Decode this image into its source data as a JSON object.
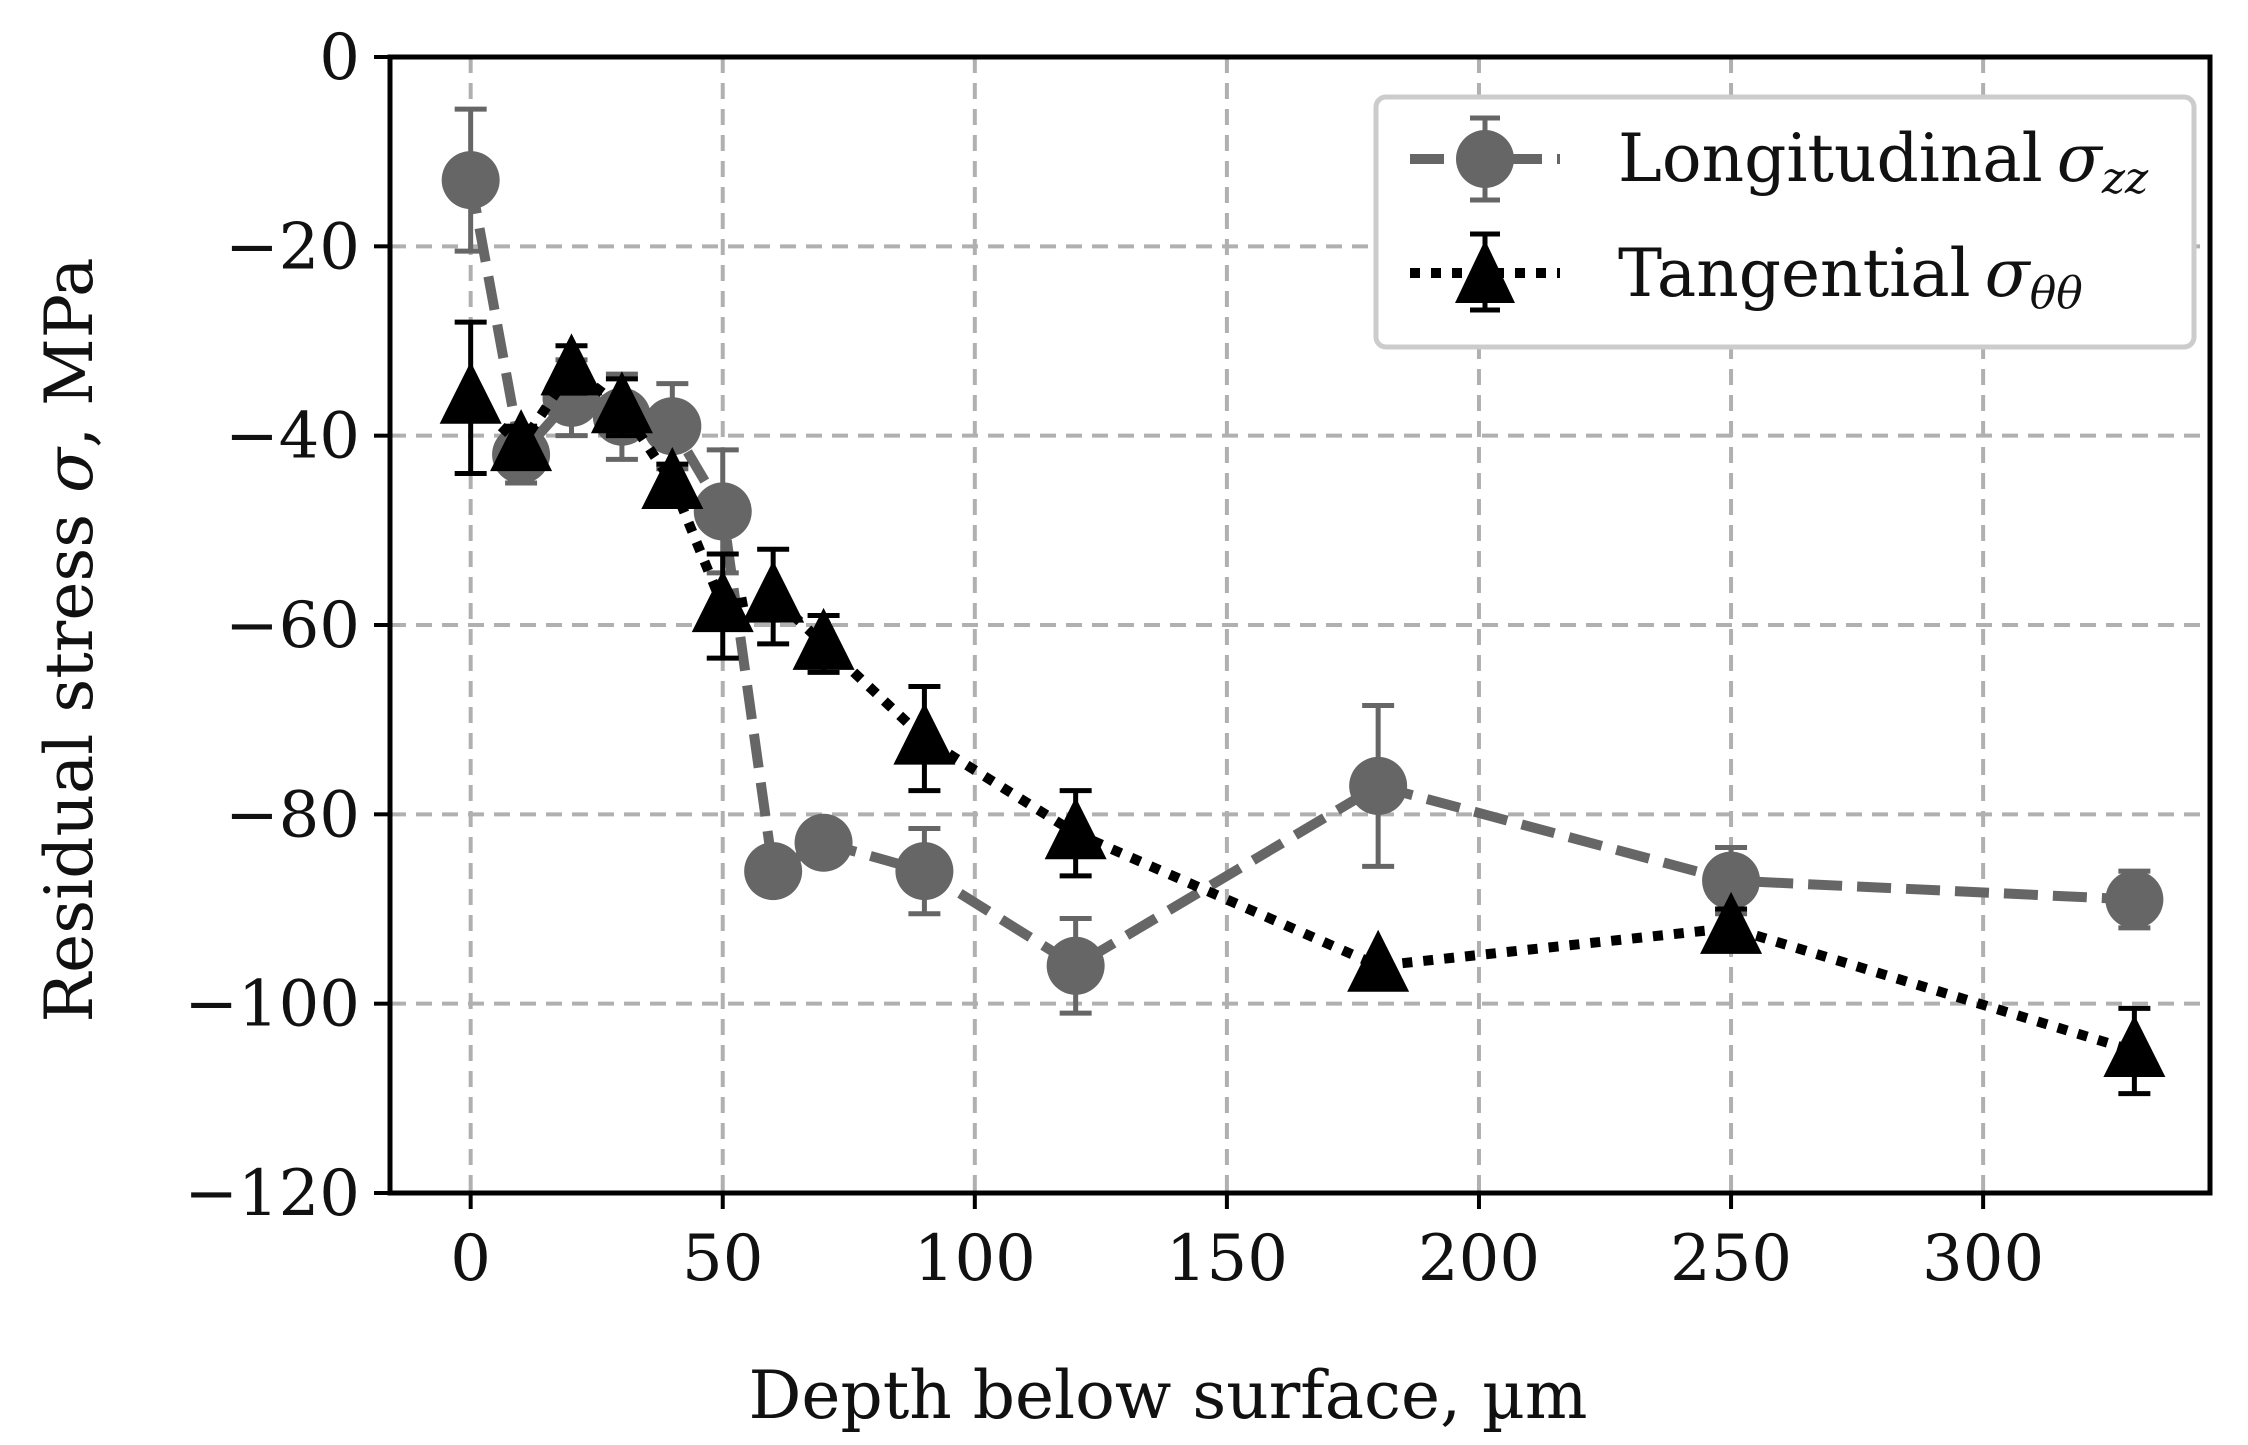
{
  "chart_data": {
    "type": "line",
    "title": "",
    "xlabel": "Depth below surface, µm",
    "ylabel_text": "Residual stress ",
    "ylabel_symbol": "σ",
    "ylabel_unit": ", MPa",
    "xlim": [
      -16,
      345
    ],
    "ylim": [
      -120,
      0
    ],
    "xticks": [
      0,
      50,
      100,
      150,
      200,
      250,
      300
    ],
    "yticks": [
      0,
      -20,
      -40,
      -60,
      -80,
      -100,
      -120
    ],
    "xtick_labels": [
      "0",
      "50",
      "100",
      "150",
      "200",
      "250",
      "300"
    ],
    "ytick_labels": [
      "0",
      "−20",
      "−40",
      "−60",
      "−80",
      "−100",
      "−120"
    ],
    "grid": true,
    "legend_position": "top-right",
    "series": [
      {
        "name": "Longitudinal",
        "symbol": "σ",
        "subscript": "zz",
        "color": "#666666",
        "marker": "circle",
        "linestyle": "dashed",
        "x": [
          0,
          10,
          20,
          30,
          40,
          50,
          60,
          70,
          90,
          120,
          180,
          250,
          330
        ],
        "y": [
          -13,
          -42,
          -36,
          -38,
          -39,
          -48,
          -86,
          -83,
          -86,
          -96,
          -77,
          -87,
          -89
        ],
        "yerr": [
          7.5,
          3,
          4,
          4.5,
          4.5,
          6.5,
          0,
          0,
          4.5,
          5,
          8.5,
          3.5,
          3
        ]
      },
      {
        "name": "Tangential",
        "symbol": "σ",
        "subscript": "θθ",
        "color": "#000000",
        "marker": "triangle",
        "linestyle": "dotted",
        "x": [
          0,
          10,
          20,
          30,
          40,
          50,
          60,
          70,
          90,
          120,
          180,
          250,
          330
        ],
        "y": [
          -36,
          -41,
          -33,
          -37,
          -45,
          -58,
          -57,
          -62,
          -72,
          -82,
          -96,
          -92,
          -105
        ],
        "yerr": [
          8,
          2,
          2.5,
          3,
          2,
          5.5,
          5,
          3,
          5.5,
          4.5,
          0,
          2,
          4.5
        ]
      }
    ]
  }
}
